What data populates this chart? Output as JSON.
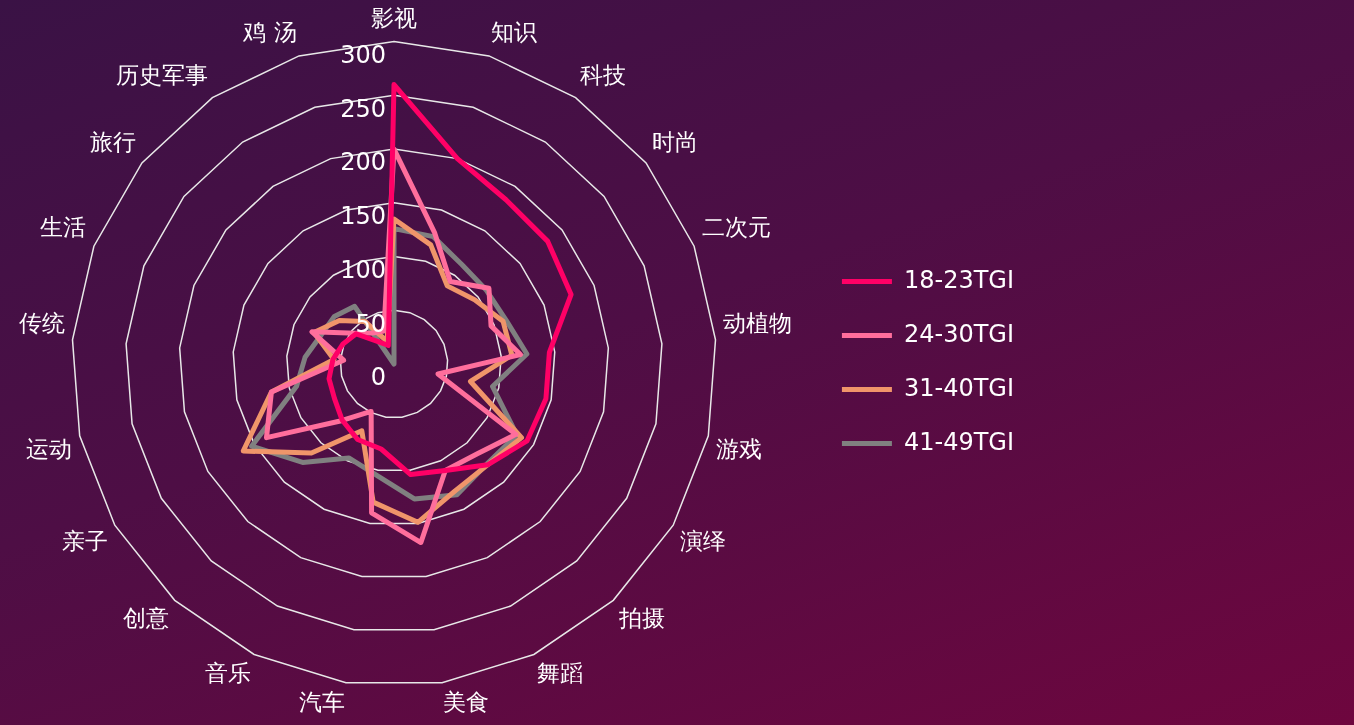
{
  "chart_data": {
    "type": "radar",
    "categories": [
      "影视",
      "知识",
      "科技",
      "时尚",
      "二次元",
      "动植物",
      "游戏",
      "演绎",
      "拍摄",
      "舞蹈",
      "美食",
      "汽车",
      "音乐",
      "创意",
      "亲子",
      "运动",
      "传统",
      "生活",
      "旅行",
      "历史军事",
      "鸡 汤"
    ],
    "series": [
      {
        "name": "18-23TGI",
        "color": "#ff0066",
        "values": [
          260,
          200,
          185,
          183,
          177,
          145,
          145,
          143,
          128,
          110,
          104,
          80,
          78,
          71,
          64,
          62,
          57,
          51,
          45,
          25,
          18
        ]
      },
      {
        "name": "24-30TGI",
        "color": "#ff6e9c",
        "values": [
          200,
          128,
          93,
          113,
          97,
          118,
          42,
          131,
          114,
          110,
          168,
          140,
          49,
          72,
          137,
          117,
          47,
          82,
          46,
          35,
          32
        ]
      },
      {
        "name": "31-40TGI",
        "color": "#f0956a",
        "values": [
          135,
          116,
          88,
          96,
          109,
          110,
          73,
          137,
          128,
          131,
          149,
          130,
          69,
          113,
          162,
          117,
          56,
          80,
          65,
          48,
          22
        ]
      },
      {
        "name": "41-49TGI",
        "color": "#808080",
        "values": [
          126,
          124,
          112,
          110,
          112,
          124,
          94,
          132,
          127,
          135,
          127,
          105,
          97,
          125,
          153,
          93,
          83,
          73,
          71,
          65,
          0
        ]
      }
    ],
    "ylim": [
      0,
      300
    ],
    "yticks": [
      0,
      50,
      100,
      150,
      200,
      250,
      300
    ],
    "grid": true,
    "legend": "right",
    "marker": "none",
    "line_style": "solid"
  }
}
